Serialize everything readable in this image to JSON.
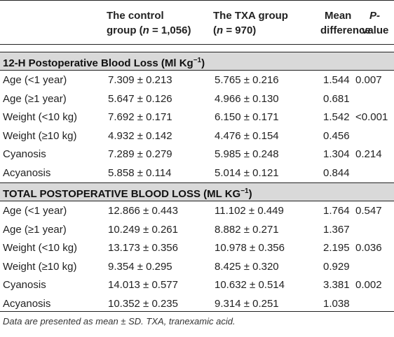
{
  "headers": {
    "col1_line1": "The control",
    "col1_line2_prefix": "group (",
    "col1_n": "n",
    "col1_line2_suffix": " = 1,056)",
    "col2_line1": "The TXA group",
    "col2_line2_prefix": "(",
    "col2_n": "n",
    "col2_line2_suffix": " = 970)",
    "col3_line1": "Mean",
    "col3_line2": "difference",
    "col4_line1": "P-",
    "col4_line2": "value"
  },
  "sections": [
    {
      "title": "12-H Postoperative Blood Loss (Ml Kg",
      "sup": "−1",
      "close": ")",
      "rows": [
        {
          "label": "Age (<1 year)",
          "control": "7.309 ± 0.213",
          "txa": "5.765 ± 0.216",
          "diff": "1.544",
          "p": "0.007"
        },
        {
          "label": "Age (≥1 year)",
          "control": "5.647 ± 0.126",
          "txa": "4.966 ± 0.130",
          "diff": "0.681",
          "p": ""
        },
        {
          "label": "Weight (<10 kg)",
          "control": "7.692 ± 0.171",
          "txa": "6.150 ± 0.171",
          "diff": "1.542",
          "p": "<0.001"
        },
        {
          "label": "Weight (≥10 kg)",
          "control": "4.932 ± 0.142",
          "txa": "4.476 ± 0.154",
          "diff": "0.456",
          "p": ""
        },
        {
          "label": "Cyanosis",
          "control": "7.289 ± 0.279",
          "txa": "5.985 ± 0.248",
          "diff": "1.304",
          "p": "0.214"
        },
        {
          "label": "Acyanosis",
          "control": "5.858 ± 0.114",
          "txa": "5.014 ± 0.121",
          "diff": "0.844",
          "p": ""
        }
      ]
    },
    {
      "title": "TOTAL POSTOPERATIVE BLOOD LOSS (ML KG",
      "sup": "−1",
      "close": ")",
      "rows": [
        {
          "label": "Age (<1 year)",
          "control": "12.866 ± 0.443",
          "txa": "11.102 ± 0.449",
          "diff": "1.764",
          "p": "0.547"
        },
        {
          "label": "Age (≥1 year)",
          "control": "10.249 ± 0.261",
          "txa": "8.882 ± 0.271",
          "diff": "1.367",
          "p": ""
        },
        {
          "label": "Weight (<10 kg)",
          "control": "13.173 ± 0.356",
          "txa": "10.978 ± 0.356",
          "diff": "2.195",
          "p": "0.036"
        },
        {
          "label": "Weight (≥10 kg)",
          "control": "9.354 ± 0.295",
          "txa": "8.425 ± 0.320",
          "diff": "0.929",
          "p": ""
        },
        {
          "label": "Cyanosis",
          "control": "14.013 ± 0.577",
          "txa": "10.632 ± 0.514",
          "diff": "3.381",
          "p": "0.002"
        },
        {
          "label": "Acyanosis",
          "control": "10.352 ± 0.235",
          "txa": "9.314 ± 0.251",
          "diff": "1.038",
          "p": ""
        }
      ]
    }
  ],
  "footnote": "Data are presented as mean ± SD. TXA, tranexamic acid."
}
